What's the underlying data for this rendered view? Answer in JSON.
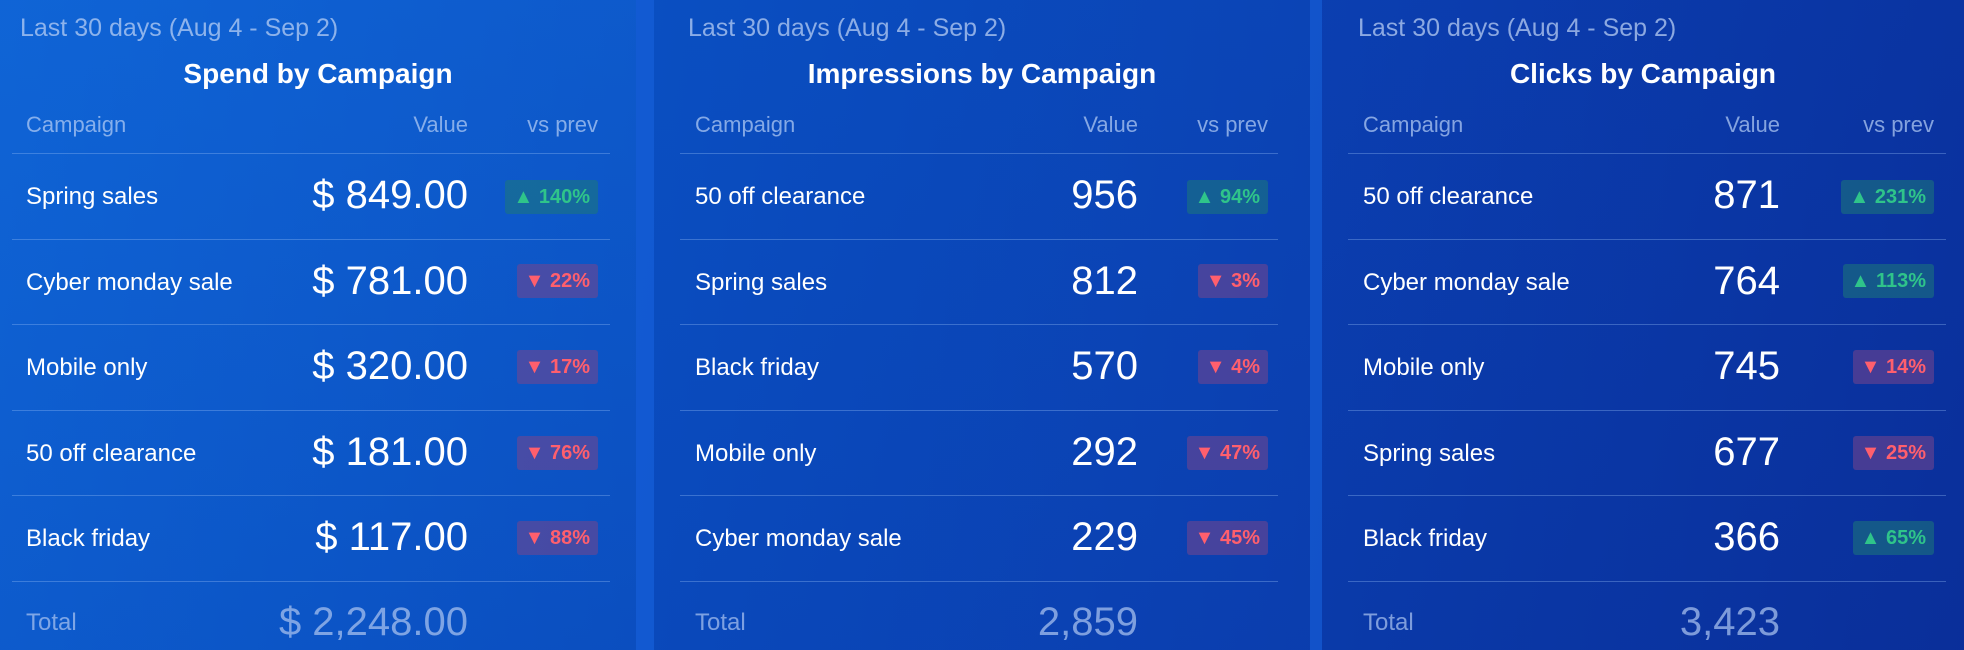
{
  "panels": [
    {
      "period": "Last 30 days (Aug 4 - Sep 2)",
      "title": "Spend by Campaign",
      "headers": {
        "campaign": "Campaign",
        "value": "Value",
        "vs": "vs prev"
      },
      "rows": [
        {
          "name": "Spring sales",
          "value": "$ 849.00",
          "change": "▲ 140%",
          "trend": "up"
        },
        {
          "name": "Cyber monday sale",
          "value": "$ 781.00",
          "change": "▼ 22%",
          "trend": "down"
        },
        {
          "name": "Mobile only",
          "value": "$ 320.00",
          "change": "▼ 17%",
          "trend": "down"
        },
        {
          "name": "50 off clearance",
          "value": "$ 181.00",
          "change": "▼ 76%",
          "trend": "down"
        },
        {
          "name": "Black friday",
          "value": "$ 117.00",
          "change": "▼ 88%",
          "trend": "down"
        }
      ],
      "total_label": "Total",
      "total_value": "$ 2,248.00"
    },
    {
      "period": "Last 30 days (Aug 4 - Sep 2)",
      "title": "Impressions by Campaign",
      "headers": {
        "campaign": "Campaign",
        "value": "Value",
        "vs": "vs prev"
      },
      "rows": [
        {
          "name": "50 off clearance",
          "value": "956",
          "change": "▲ 94%",
          "trend": "up"
        },
        {
          "name": "Spring sales",
          "value": "812",
          "change": "▼ 3%",
          "trend": "down"
        },
        {
          "name": "Black friday",
          "value": "570",
          "change": "▼ 4%",
          "trend": "down"
        },
        {
          "name": "Mobile only",
          "value": "292",
          "change": "▼ 47%",
          "trend": "down"
        },
        {
          "name": "Cyber monday sale",
          "value": "229",
          "change": "▼ 45%",
          "trend": "down"
        }
      ],
      "total_label": "Total",
      "total_value": "2,859"
    },
    {
      "period": "Last 30 days (Aug 4 - Sep 2)",
      "title": "Clicks by Campaign",
      "headers": {
        "campaign": "Campaign",
        "value": "Value",
        "vs": "vs prev"
      },
      "rows": [
        {
          "name": "50 off clearance",
          "value": "871",
          "change": "▲ 231%",
          "trend": "up"
        },
        {
          "name": "Cyber monday sale",
          "value": "764",
          "change": "▲ 113%",
          "trend": "up"
        },
        {
          "name": "Mobile only",
          "value": "745",
          "change": "▼ 14%",
          "trend": "down"
        },
        {
          "name": "Spring sales",
          "value": "677",
          "change": "▼ 25%",
          "trend": "down"
        },
        {
          "name": "Black friday",
          "value": "366",
          "change": "▲ 65%",
          "trend": "up"
        }
      ],
      "total_label": "Total",
      "total_value": "3,423"
    }
  ],
  "colors": {
    "background": "#0a47b3",
    "up_text": "#2fc48a",
    "down_text": "#ff5f6d",
    "muted_text": "#b4cdf5"
  }
}
